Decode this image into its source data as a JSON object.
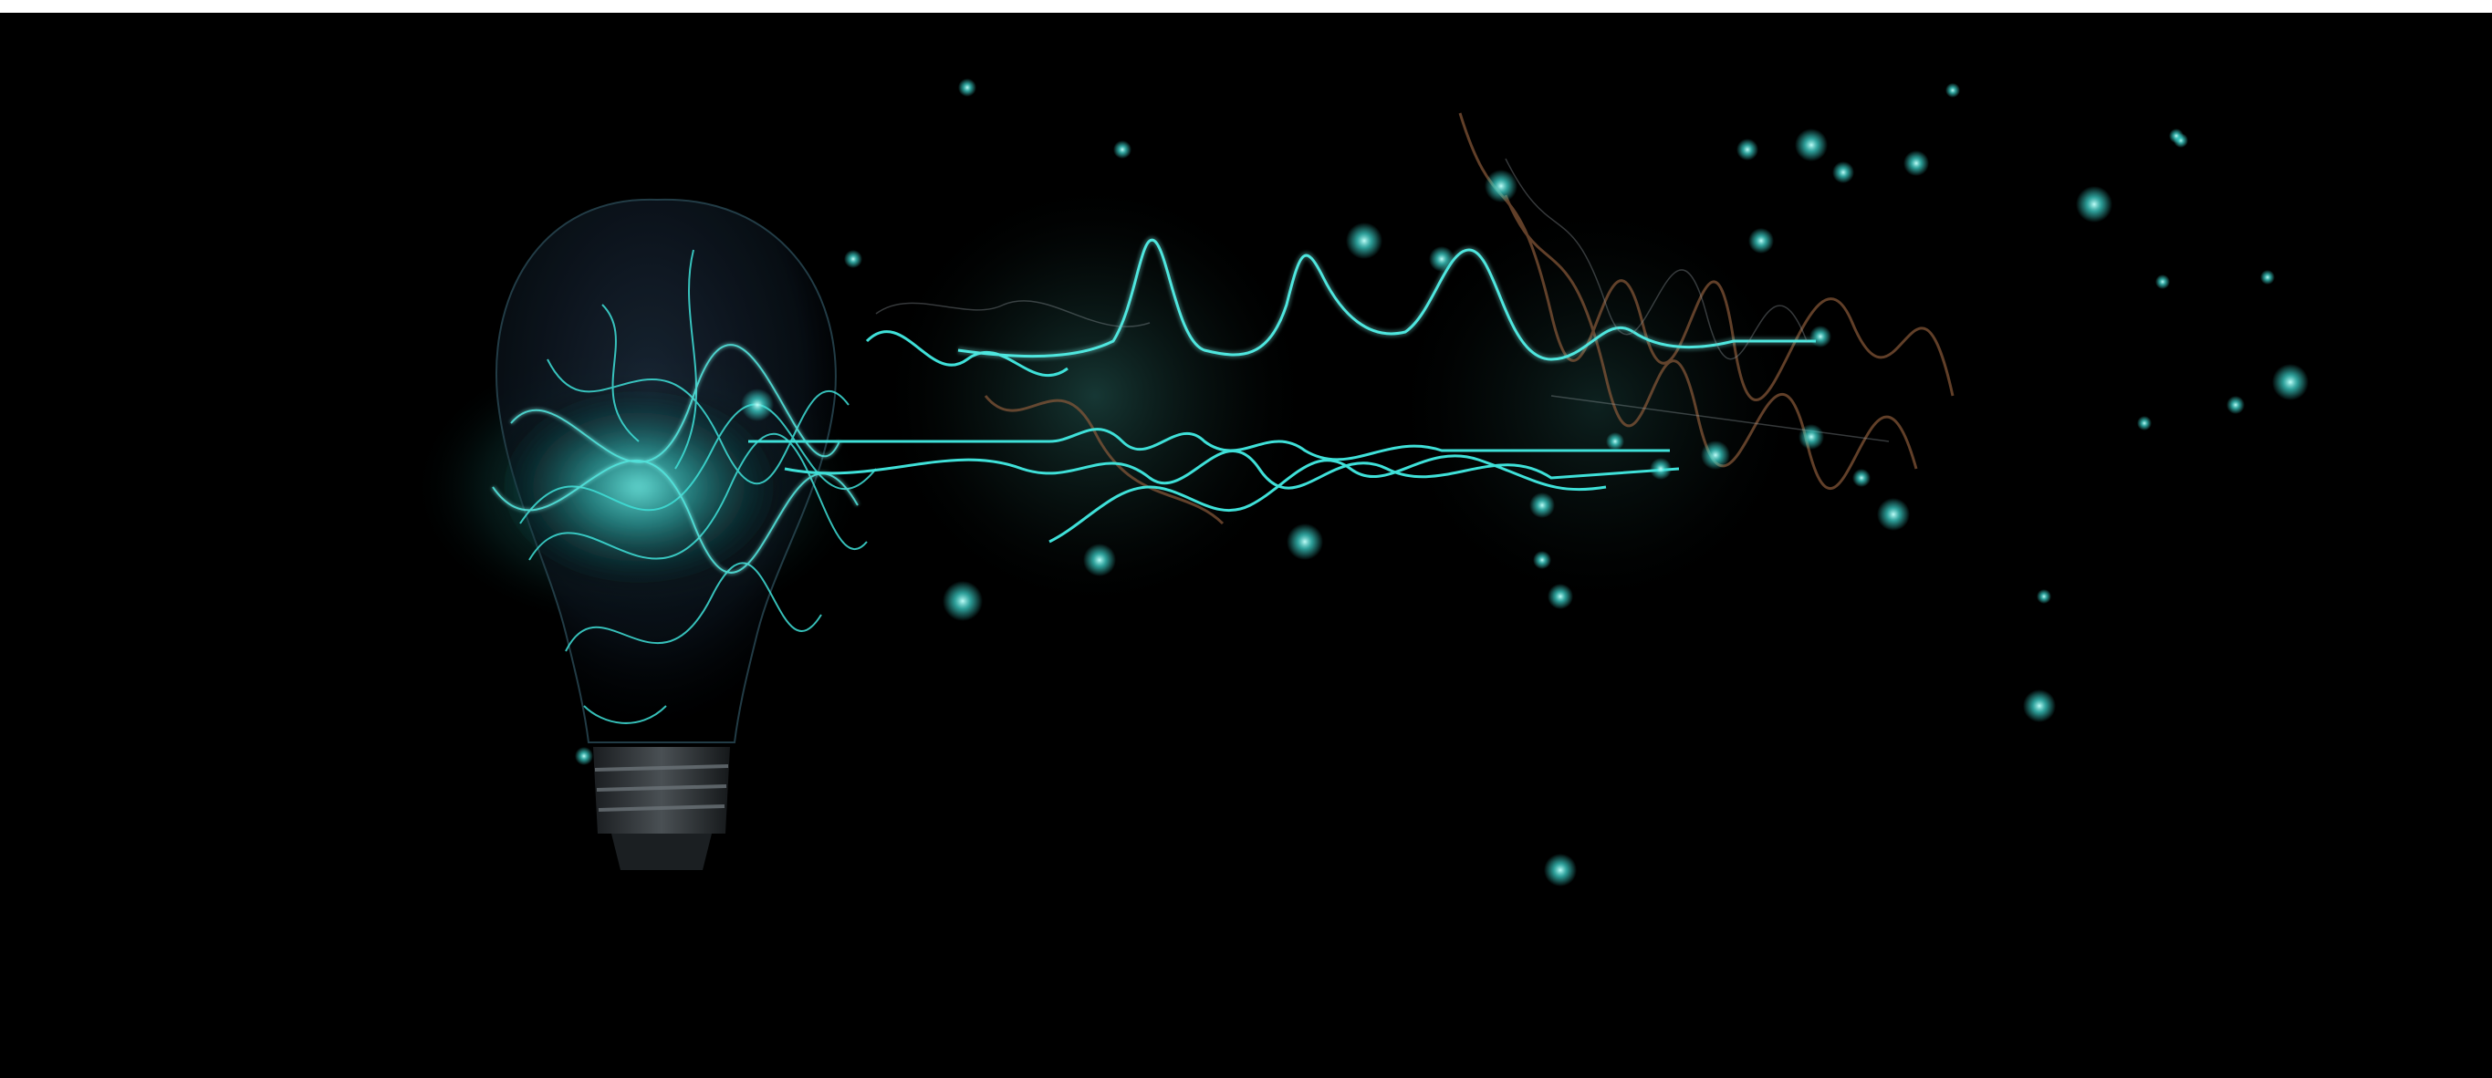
{
  "scene": {
    "subject": "glowing-lightbulb-with-waveforms",
    "colors": {
      "background": "#000000",
      "frame_border": "#ffffff",
      "glow_primary": "#3fe0d8",
      "glow_bright": "#7ff7f0",
      "glow_dim": "#1a6f6a",
      "copper_trace": "#8a5a3a",
      "bulb_glass": "#0e1a22",
      "bulb_base": "#2a2f33"
    },
    "icons": [
      "lightbulb-icon",
      "waveform-icon",
      "particle-icon"
    ]
  }
}
